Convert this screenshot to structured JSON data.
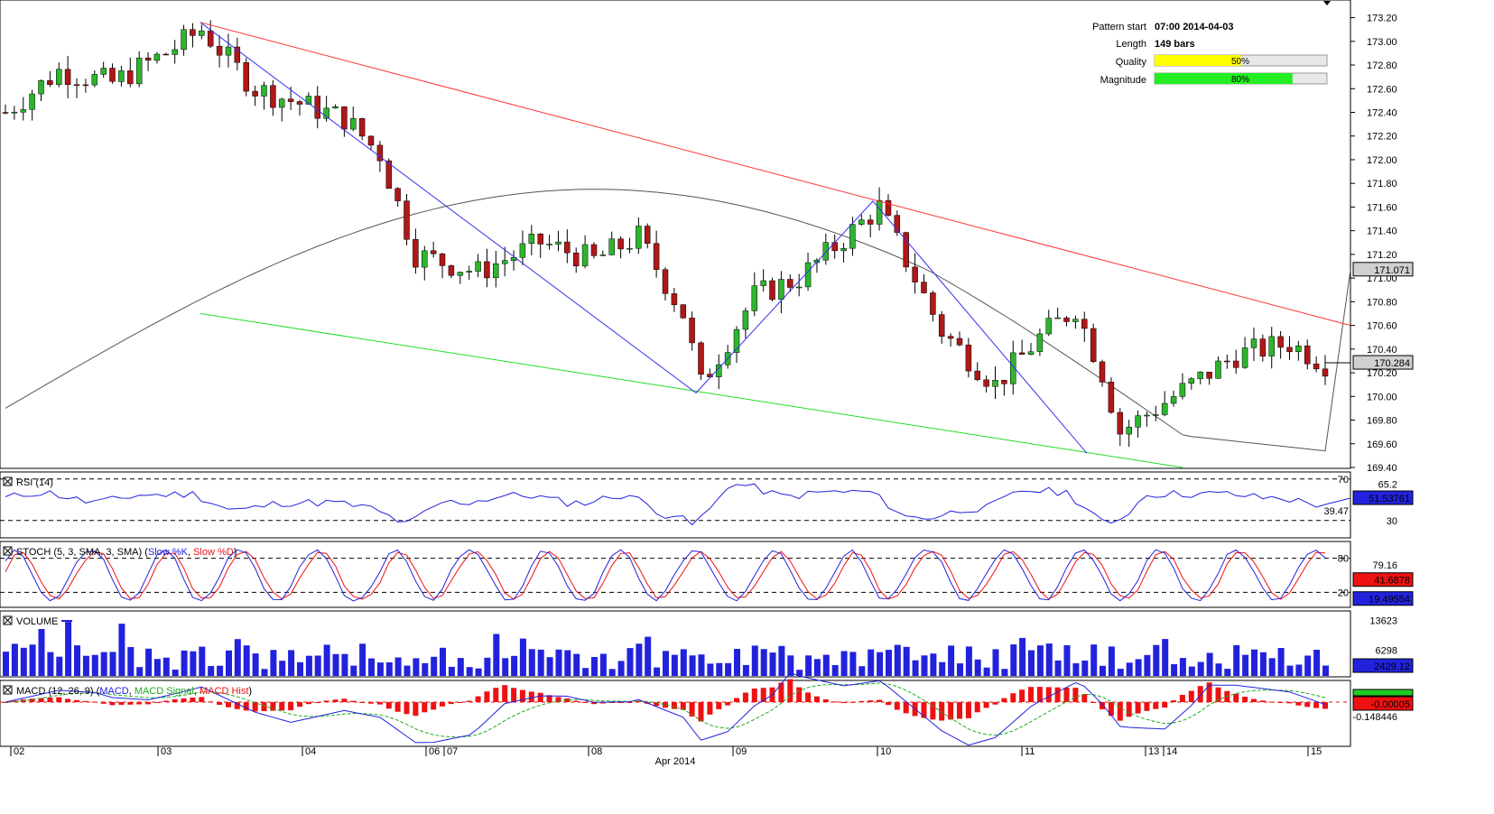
{
  "info": {
    "pattern_start_label": "Pattern start",
    "pattern_start_value": "07:00 2014-04-03",
    "length_label": "Length",
    "length_value": "149 bars",
    "quality_label": "Quality",
    "quality_text": "50%",
    "quality_value": 0.5,
    "magnitude_label": "Magnitude",
    "magnitude_text": "80%",
    "magnitude_value": 0.8
  },
  "colors": {
    "up": "#2db52d",
    "down": "#b01717",
    "resistance": "#ff3333",
    "support": "#22dd22",
    "zigzag": "#3333ee",
    "ma": "#555555",
    "volume": "#2222dd",
    "macd_hist": "#ee1111"
  },
  "chart_data": {
    "type": "candlestick",
    "price_axis": {
      "ticks": [
        "173.20",
        "173.00",
        "172.80",
        "172.60",
        "172.40",
        "172.20",
        "172.00",
        "171.80",
        "171.60",
        "171.40",
        "171.20",
        "171.00",
        "170.80",
        "170.60",
        "170.40",
        "170.20",
        "170.00",
        "169.80",
        "169.60",
        "169.40"
      ],
      "ylim": [
        169.4,
        173.25
      ],
      "current_ma": "171.071",
      "current_price": "170.284"
    },
    "price_summary": {
      "start": 172.4,
      "high": 173.16,
      "low": 169.51,
      "last": 170.284,
      "bars": 149,
      "resistance_line": {
        "from": 173.16,
        "to": 170.6
      },
      "support_line": {
        "from": 170.7,
        "to": 169.4
      },
      "pattern_points": [
        173.16,
        170.03,
        171.65,
        169.52
      ]
    },
    "x_axis": {
      "labels": [
        "02",
        "03",
        "04",
        "06",
        "07",
        "08",
        "09",
        "10",
        "11",
        "13",
        "14",
        "15"
      ],
      "month_label": "Apr 2014"
    },
    "rsi": {
      "title": "RSI (14)",
      "ticks": [
        "70",
        "65.2",
        "39.47",
        "30"
      ],
      "current": "51.53761"
    },
    "stoch": {
      "title_prefix": "STOCH (5, 3, SMA, 3, SMA)",
      "k_label": "Slow %K",
      "d_label": "Slow %D",
      "ticks": [
        "80",
        "79.16",
        "20"
      ],
      "current_d": "41.6878",
      "current_k": "19.49554"
    },
    "volume": {
      "title": "VOLUME",
      "ticks": [
        "13623",
        "6298"
      ],
      "current": "2429.12"
    },
    "macd": {
      "title_prefix": "MACD (12, 26, 9)",
      "macd_label": "MACD",
      "signal_label": "MACD Signal",
      "hist_label": "MACD Hist",
      "ticks": [
        "-0.148446"
      ],
      "current": "-0.00005"
    }
  }
}
